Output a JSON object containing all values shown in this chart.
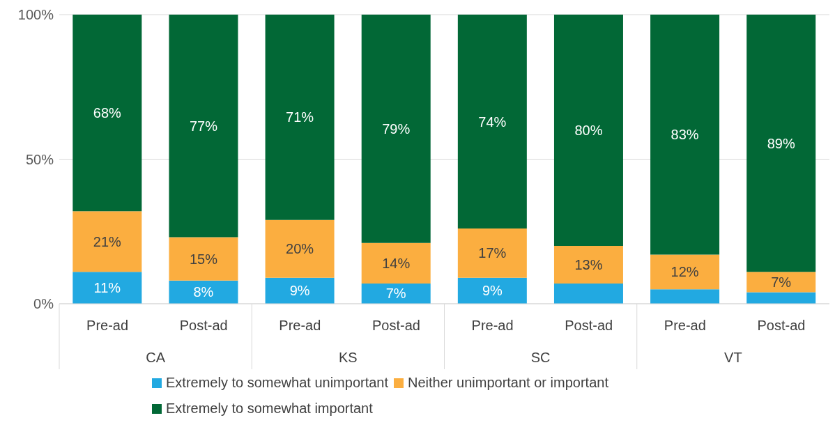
{
  "chart_data": {
    "type": "bar",
    "stacked": true,
    "categories": [
      "Pre-ad",
      "Post-ad",
      "Pre-ad",
      "Post-ad",
      "Pre-ad",
      "Post-ad",
      "Pre-ad",
      "Post-ad"
    ],
    "annotations": [
      "CA",
      "KS",
      "SC",
      "VT"
    ],
    "series": [
      {
        "name": "Extremely to somewhat unimportant",
        "color": "#22a9e1",
        "values": [
          11,
          8,
          9,
          7,
          9,
          7,
          5,
          4
        ],
        "value_labels": [
          "11%",
          "8%",
          "9%",
          "7%",
          "9%",
          null,
          null,
          null
        ]
      },
      {
        "name": "Neither unimportant or important",
        "color": "#fbae40",
        "values": [
          21,
          15,
          20,
          14,
          17,
          13,
          12,
          7
        ],
        "value_labels": [
          "21%",
          "15%",
          "20%",
          "14%",
          "17%",
          "13%",
          "12%",
          "7%"
        ]
      },
      {
        "name": "Extremely to somewhat important",
        "color": "#026836",
        "values": [
          68,
          77,
          71,
          79,
          74,
          80,
          83,
          89
        ],
        "value_labels": [
          "68%",
          "77%",
          "71%",
          "79%",
          "74%",
          "80%",
          "83%",
          "89%"
        ]
      }
    ],
    "ylim": [
      0,
      100
    ],
    "yticks": [
      {
        "value": 0,
        "label": "0%"
      },
      {
        "value": 50,
        "label": "50%"
      },
      {
        "value": 100,
        "label": "100%"
      }
    ],
    "grid": "y",
    "legend": "bottom"
  }
}
